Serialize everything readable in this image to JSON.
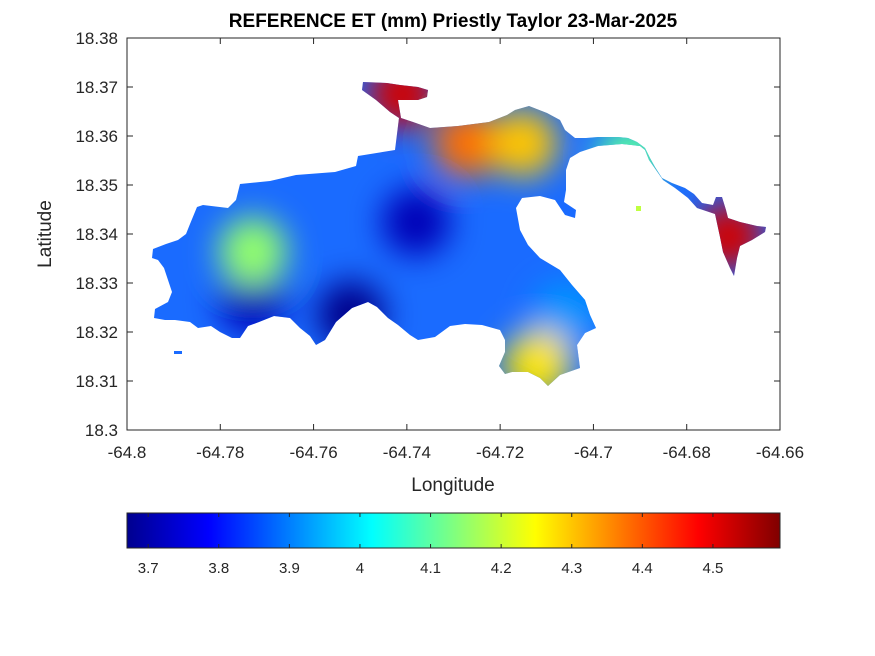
{
  "chart_data": {
    "type": "heatmap",
    "title": "REFERENCE ET (mm) Priestly Taylor 23-Mar-2025",
    "xlabel": "Longitude",
    "ylabel": "Latitude",
    "xlim": [
      -64.8,
      -64.66
    ],
    "ylim": [
      18.3,
      18.38
    ],
    "x_ticks": [
      -64.8,
      -64.78,
      -64.76,
      -64.74,
      -64.72,
      -64.7,
      -64.68,
      -64.66
    ],
    "x_tick_labels": [
      "-64.8",
      "-64.78",
      "-64.76",
      "-64.74",
      "-64.72",
      "-64.7",
      "-64.68",
      "-64.66"
    ],
    "y_ticks": [
      18.3,
      18.31,
      18.32,
      18.33,
      18.34,
      18.35,
      18.36,
      18.37,
      18.38
    ],
    "y_tick_labels": [
      "18.3",
      "18.31",
      "18.32",
      "18.33",
      "18.34",
      "18.35",
      "18.36",
      "18.37",
      "18.38"
    ],
    "grid": false,
    "colormap": "jet",
    "colorbar": {
      "placement": "bottom",
      "range": [
        3.67,
        4.595
      ],
      "ticks": [
        3.7,
        3.8,
        3.9,
        4.0,
        4.1,
        4.2,
        4.3,
        4.4,
        4.5
      ],
      "tick_labels": [
        "3.7",
        "3.8",
        "3.9",
        "4",
        "4.1",
        "4.2",
        "4.3",
        "4.4",
        "4.5"
      ]
    },
    "value_range": [
      3.68,
      4.55
    ],
    "regions": [
      {
        "lon": -64.773,
        "lat": 18.3265,
        "value": 3.72
      },
      {
        "lon": -64.752,
        "lat": 18.3235,
        "value": 3.68
      },
      {
        "lon": -64.738,
        "lat": 18.3425,
        "value": 3.72
      },
      {
        "lon": -64.773,
        "lat": 18.3365,
        "value": 4.15
      },
      {
        "lon": -64.706,
        "lat": 18.3235,
        "value": 3.92
      },
      {
        "lon": -64.741,
        "lat": 18.3685,
        "value": 4.52
      },
      {
        "lon": -64.671,
        "lat": 18.3395,
        "value": 4.52
      },
      {
        "lon": -64.727,
        "lat": 18.3585,
        "value": 4.38
      },
      {
        "lon": -64.715,
        "lat": 18.3585,
        "value": 4.3
      },
      {
        "lon": -64.712,
        "lat": 18.3135,
        "value": 4.27
      },
      {
        "lon": -64.692,
        "lat": 18.3555,
        "value": 4.1
      }
    ]
  }
}
